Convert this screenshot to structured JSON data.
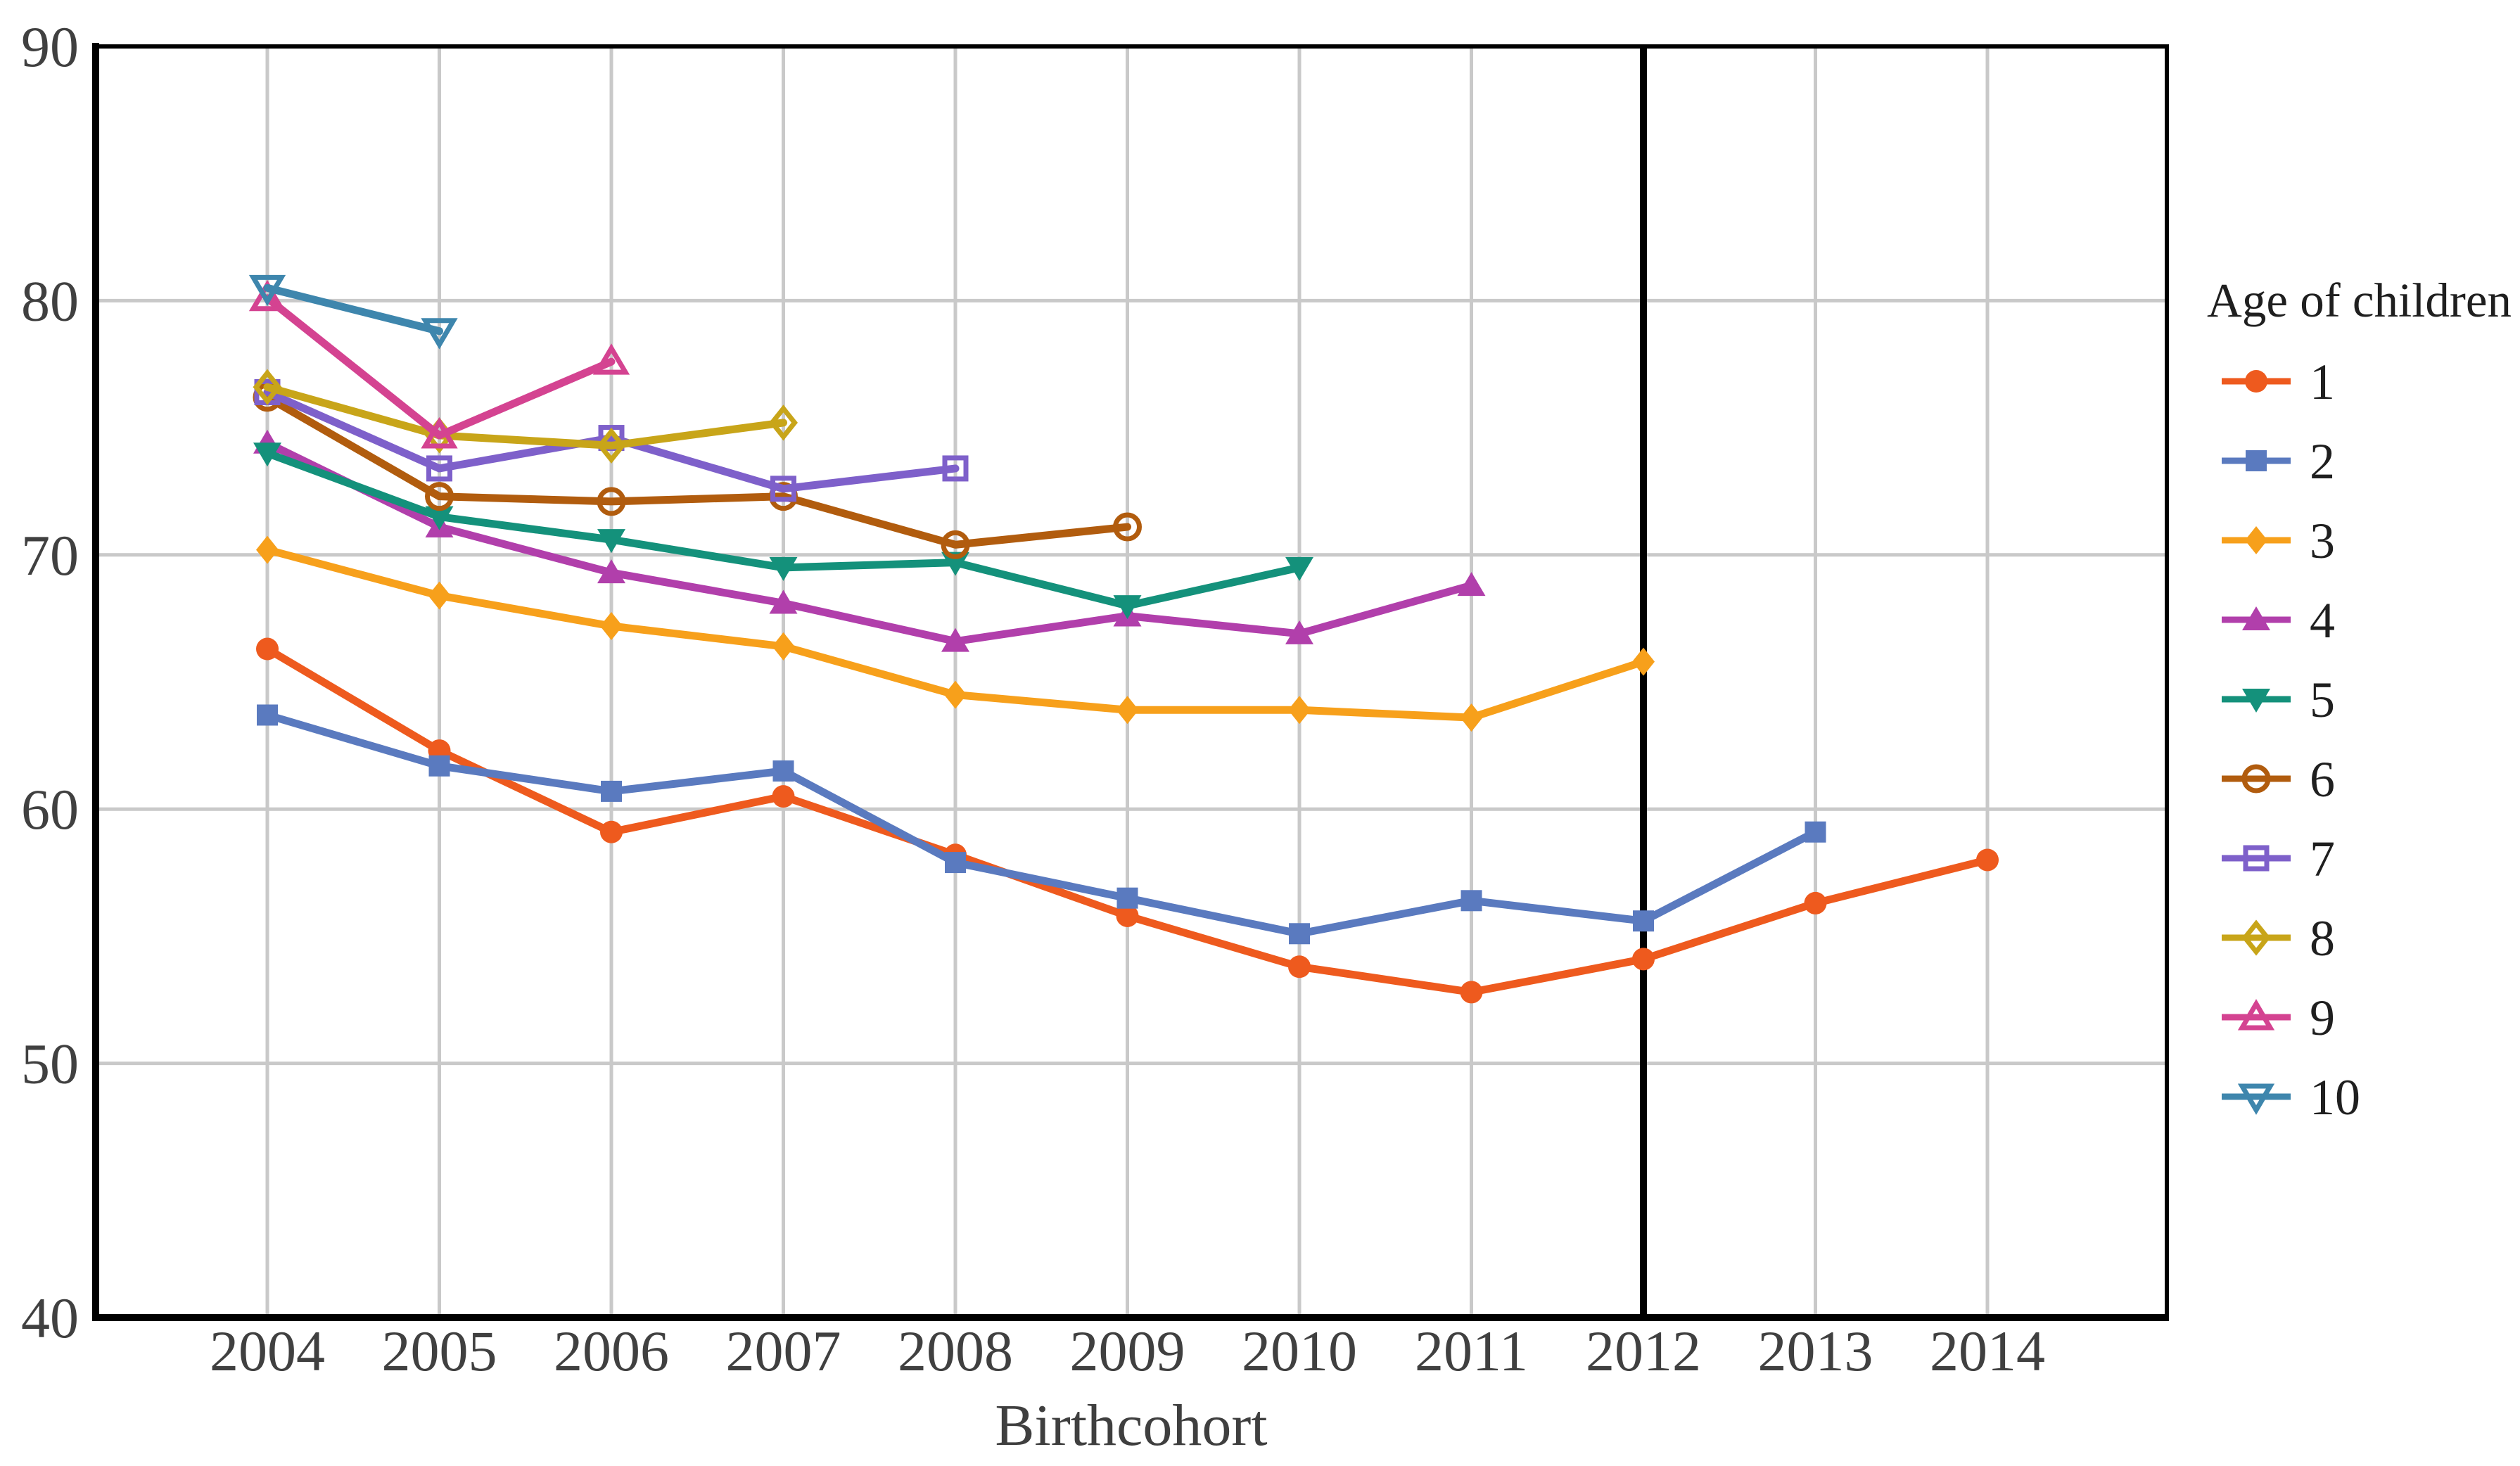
{
  "chart_data": {
    "type": "line",
    "title": "",
    "xlabel": "Birthcohort",
    "ylabel": "",
    "legend_title": "Age of children",
    "legend_position": "right",
    "grid": true,
    "x": [
      2004,
      2005,
      2006,
      2007,
      2008,
      2009,
      2010,
      2011,
      2012,
      2013,
      2014
    ],
    "ylim": [
      40,
      90
    ],
    "yticks": [
      40,
      50,
      60,
      70,
      80,
      90
    ],
    "vline_x": 2012,
    "colors": {
      "tick_text": "#404040",
      "axis_text": "#3f3f3f",
      "gridline": "#c9c9c9",
      "frame": "#000000",
      "vline": "#000000",
      "legend_text": "#1f1f1f"
    },
    "series": [
      {
        "name": "1",
        "marker": "circle",
        "filled": true,
        "color": "#ee5a1e",
        "values": [
          66.3,
          62.3,
          59.1,
          60.5,
          58.2,
          55.8,
          53.8,
          52.8,
          54.1,
          56.3,
          58.0
        ]
      },
      {
        "name": "2",
        "marker": "square",
        "filled": true,
        "color": "#5a7abf",
        "values": [
          63.7,
          61.7,
          60.7,
          61.5,
          57.9,
          56.5,
          55.1,
          56.4,
          55.6,
          59.1,
          null
        ]
      },
      {
        "name": "3",
        "marker": "diamond",
        "filled": true,
        "color": "#f7a01b",
        "values": [
          70.2,
          68.4,
          67.2,
          66.4,
          64.5,
          63.9,
          63.9,
          63.6,
          65.8,
          null,
          null
        ]
      },
      {
        "name": "4",
        "marker": "triangle-up",
        "filled": true,
        "color": "#b13fab",
        "values": [
          74.4,
          71.1,
          69.3,
          68.1,
          66.6,
          67.6,
          66.9,
          68.8,
          null,
          null,
          null
        ]
      },
      {
        "name": "5",
        "marker": "triangle-down",
        "filled": true,
        "color": "#14917b",
        "values": [
          74.0,
          71.5,
          70.6,
          69.5,
          69.7,
          68.0,
          69.5,
          null,
          null,
          null,
          null
        ]
      },
      {
        "name": "6",
        "marker": "circle",
        "filled": false,
        "color": "#b15c0e",
        "values": [
          76.2,
          72.3,
          72.1,
          72.3,
          70.4,
          71.1,
          null,
          null,
          null,
          null,
          null
        ]
      },
      {
        "name": "7",
        "marker": "square",
        "filled": false,
        "color": "#7e60ca",
        "values": [
          76.4,
          73.4,
          74.6,
          72.6,
          73.4,
          null,
          null,
          null,
          null,
          null,
          null
        ]
      },
      {
        "name": "8",
        "marker": "diamond",
        "filled": false,
        "color": "#c8a519",
        "values": [
          76.6,
          74.7,
          74.3,
          75.2,
          null,
          null,
          null,
          null,
          null,
          null,
          null
        ]
      },
      {
        "name": "9",
        "marker": "triangle-up",
        "filled": false,
        "color": "#d44391",
        "values": [
          80.1,
          74.7,
          77.6,
          null,
          null,
          null,
          null,
          null,
          null,
          null,
          null
        ]
      },
      {
        "name": "10",
        "marker": "triangle-down",
        "filled": false,
        "color": "#3e86ad",
        "values": [
          80.5,
          78.8,
          null,
          null,
          null,
          null,
          null,
          null,
          null,
          null,
          null
        ]
      }
    ]
  }
}
